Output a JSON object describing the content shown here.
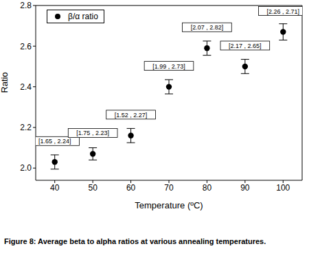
{
  "chart_data": {
    "type": "scatter",
    "x_label": "Temperature (ºC)",
    "y_label": "Ratio",
    "caption": "Figure 8: Average beta to alpha ratios at various annealing temperatures.",
    "x": [
      40,
      50,
      60,
      70,
      80,
      90,
      100
    ],
    "series": [
      {
        "name": "β/α ratio",
        "color": "#000000",
        "marker": "circle",
        "values": [
          2.03,
          2.07,
          2.16,
          2.4,
          2.59,
          2.5,
          2.67
        ],
        "errors": [
          0.035,
          0.03,
          0.035,
          0.035,
          0.035,
          0.035,
          0.04
        ]
      }
    ],
    "annotations": [
      "[1.65 , 2.24]",
      "[1.75 , 2.23]",
      "[1.52 , 2.27]",
      "[1.99 , 2.73]",
      "[2.07 , 2.82]",
      "[2.17 , 2.65]",
      "[2.26 , 2.71]"
    ],
    "xlim": [
      35,
      105
    ],
    "xticks": [
      40,
      50,
      60,
      70,
      80,
      90,
      100
    ],
    "ylim": [
      1.94,
      2.8
    ],
    "yticks": [
      {
        "value": 2,
        "label": "2.0"
      },
      2.2,
      2.4,
      2.6,
      2.8
    ],
    "legend": "upper left"
  }
}
